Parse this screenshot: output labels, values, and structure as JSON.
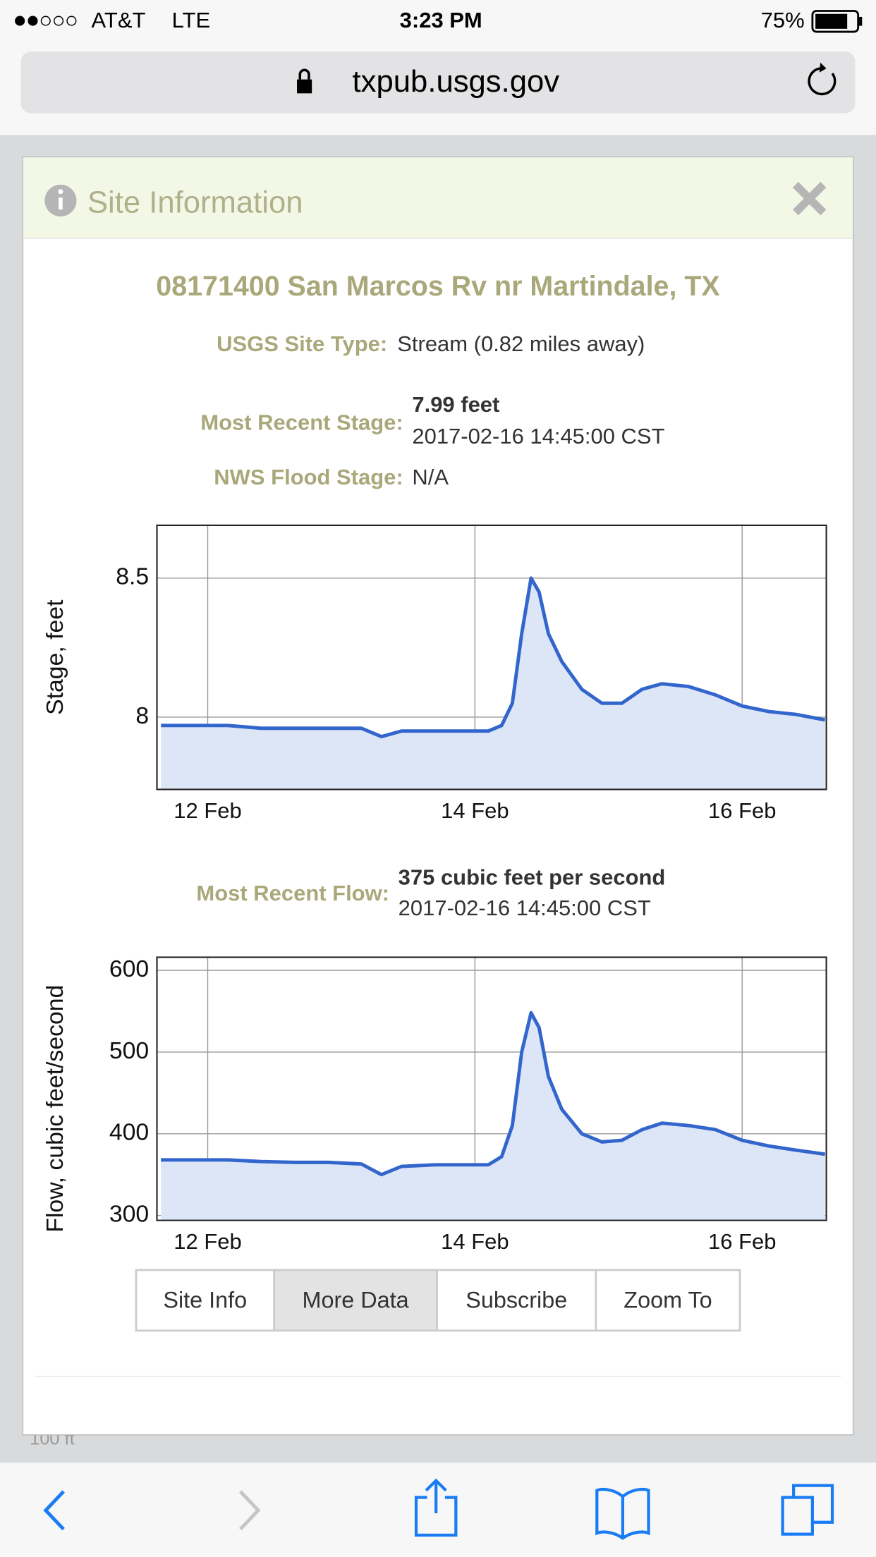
{
  "status_bar": {
    "carrier": "AT&T",
    "network": "LTE",
    "time": "3:23 PM",
    "battery": "75%"
  },
  "browser": {
    "url": "txpub.usgs.gov"
  },
  "map": {
    "scale": "100 ft"
  },
  "modal": {
    "title": "Site Information",
    "site_name": "08171400 San Marcos Rv nr Martindale, TX",
    "site_type": {
      "label": "USGS Site Type:",
      "value": "Stream (0.82 miles away)"
    },
    "stage": {
      "label": "Most Recent Stage:",
      "value": "7.99 feet",
      "time": "2017-02-16 14:45:00 CST"
    },
    "flood_stage": {
      "label": "NWS Flood Stage:",
      "value": "N/A"
    },
    "flow": {
      "label": "Most Recent Flow:",
      "value": "375 cubic feet per second",
      "time": "2017-02-16 14:45:00 CST"
    },
    "buttons": [
      "Site Info",
      "More Data",
      "Subscribe",
      "Zoom To"
    ]
  },
  "chart_data": [
    {
      "type": "area",
      "y_label": "Stage, feet",
      "color": "#3366cc",
      "fill": "#dde6f7",
      "grid": true,
      "x": [
        11.65,
        11.9,
        12.15,
        12.4,
        12.65,
        12.9,
        13.15,
        13.3,
        13.45,
        13.7,
        13.95,
        14.1,
        14.2,
        14.28,
        14.35,
        14.42,
        14.48,
        14.55,
        14.65,
        14.8,
        14.95,
        15.1,
        15.25,
        15.4,
        15.6,
        15.8,
        16.0,
        16.2,
        16.4,
        16.62
      ],
      "values": [
        7.97,
        7.97,
        7.97,
        7.96,
        7.96,
        7.96,
        7.96,
        7.93,
        7.95,
        7.95,
        7.95,
        7.95,
        7.97,
        8.05,
        8.3,
        8.5,
        8.45,
        8.3,
        8.2,
        8.1,
        8.05,
        8.05,
        8.1,
        8.12,
        8.11,
        8.08,
        8.04,
        8.02,
        8.01,
        7.99
      ],
      "xlim": [
        11.62,
        16.63
      ],
      "xticks": [
        {
          "value": 12,
          "label": "12 Feb"
        },
        {
          "value": 14,
          "label": "14 Feb"
        },
        {
          "value": 16,
          "label": "16 Feb"
        }
      ],
      "ylim": [
        7.74,
        8.69
      ],
      "yticks": [
        8,
        8.5
      ]
    },
    {
      "type": "area",
      "y_label": "Flow, cubic feet/second",
      "color": "#3366cc",
      "fill": "#dde6f7",
      "grid": true,
      "x": [
        11.65,
        11.9,
        12.15,
        12.4,
        12.65,
        12.9,
        13.15,
        13.3,
        13.45,
        13.7,
        13.95,
        14.1,
        14.2,
        14.28,
        14.35,
        14.42,
        14.48,
        14.55,
        14.65,
        14.8,
        14.95,
        15.1,
        15.25,
        15.4,
        15.6,
        15.8,
        16.0,
        16.2,
        16.4,
        16.62
      ],
      "values": [
        368,
        368,
        368,
        366,
        365,
        365,
        363,
        350,
        360,
        362,
        362,
        362,
        372,
        410,
        500,
        548,
        530,
        470,
        430,
        400,
        390,
        392,
        405,
        413,
        410,
        405,
        392,
        385,
        380,
        375
      ],
      "xlim": [
        11.62,
        16.63
      ],
      "xticks": [
        {
          "value": 12,
          "label": "12 Feb"
        },
        {
          "value": 14,
          "label": "14 Feb"
        },
        {
          "value": 16,
          "label": "16 Feb"
        }
      ],
      "ylim": [
        294,
        616
      ],
      "yticks": [
        300,
        400,
        500,
        600
      ]
    }
  ]
}
